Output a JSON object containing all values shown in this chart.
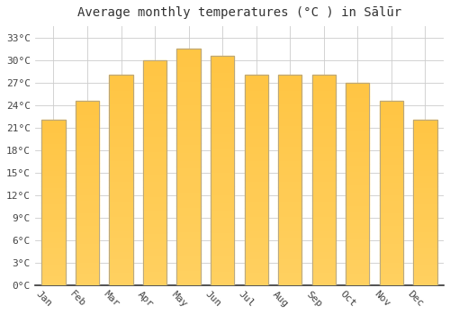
{
  "title": "Average monthly temperatures (°C ) in Sālūr",
  "months": [
    "Jan",
    "Feb",
    "Mar",
    "Apr",
    "May",
    "Jun",
    "Jul",
    "Aug",
    "Sep",
    "Oct",
    "Nov",
    "Dec"
  ],
  "values": [
    22,
    24.5,
    28,
    30,
    31.5,
    30.5,
    28,
    28,
    28,
    27,
    24.5,
    22
  ],
  "bar_color_main": "#FFAA00",
  "bar_color_light": "#FFD060",
  "bar_edge_color": "#999999",
  "yticks": [
    0,
    3,
    6,
    9,
    12,
    15,
    18,
    21,
    24,
    27,
    30,
    33
  ],
  "ylim": [
    0,
    34.5
  ],
  "background_color": "#ffffff",
  "grid_color": "#cccccc",
  "title_fontsize": 10,
  "tick_fontsize": 8,
  "xlabel_rotation": -45,
  "bar_width": 0.7
}
